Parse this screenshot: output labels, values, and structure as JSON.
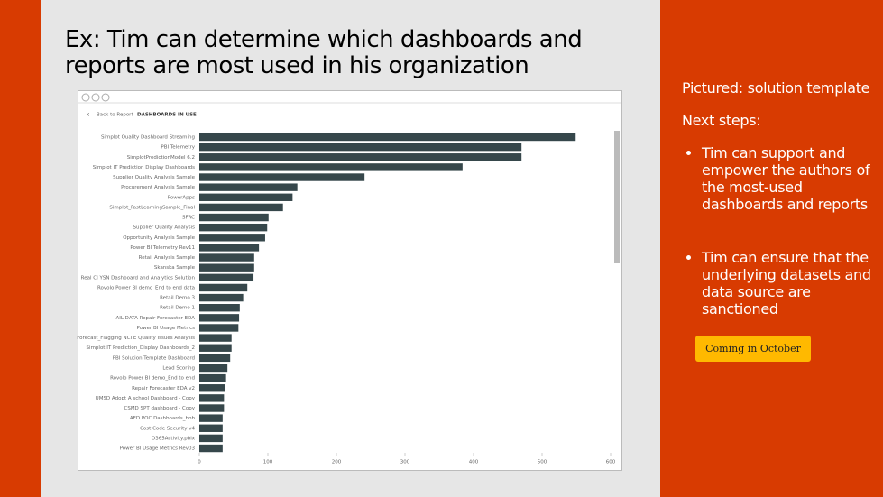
{
  "title": "Ex: Tim can determine which dashboards and reports are most used in his organization",
  "side": {
    "pictured": "Pictured: solution template",
    "next_steps": "Next steps:",
    "bullets": [
      "Tim can support and empower the authors of the most-used dashboards and reports",
      "Tim can ensure that the underlying datasets and data source are sanctioned"
    ],
    "button": "Coming in October"
  },
  "screenshot": {
    "back": "Back to Report",
    "heading": "DASHBOARDS IN USE"
  },
  "chart_data": {
    "type": "hbar",
    "color": "#36474b",
    "categories": [
      "Simplot Quality Dashboard Streaming",
      "PBI Telemetry",
      "SimplotPredictionModel 6.2",
      "Simplot IT Prediction Display Dashboards",
      "Supplier Quality Analysis Sample",
      "Procurement Analysis Sample",
      "PowerApps",
      "Simplot_FastLearningSample_Final",
      "SFRC",
      "Supplier Quality Analysis",
      "Opportunity Analysis Sample",
      "Power BI Telemetry Rev11",
      "Retail Analysis Sample",
      "Skanska Sample",
      "Real CI YSN Dashboard and Analytics Solution",
      "Rovolo Power BI demo_End to end data",
      "Retail Demo 3",
      "Retail Demo 1",
      "AIL DATA Repair Forecaster EDA",
      "Power BI Usage Metrics",
      "Forecast_Flagging NCI E Quality Issues Analysis",
      "Simplot IT Prediction_Display Dashboards_2",
      "PBI Solution Template Dashboard",
      "Lead Scoring",
      "Rovolo Power BI demo_End to end",
      "Repair Forecaster EDA v2",
      "UMSD Adopt A school Dashboard - Copy",
      "CSMD SPT dashboard - Copy",
      "AFD POC Dashboards_bbb",
      "Cost Code Security v4",
      "O365Activity.pbix",
      "Power BI Usage Metrics Rev03"
    ],
    "values": [
      549,
      470,
      470,
      384,
      241,
      143,
      136,
      122,
      101,
      99,
      96,
      87,
      80,
      80,
      79,
      70,
      64,
      59,
      58,
      57,
      47,
      47,
      45,
      41,
      39,
      38,
      36,
      36,
      34,
      34,
      34,
      34
    ],
    "xlim": [
      0,
      600
    ],
    "xticks": [
      0,
      100,
      200,
      300,
      400,
      500,
      600
    ]
  }
}
